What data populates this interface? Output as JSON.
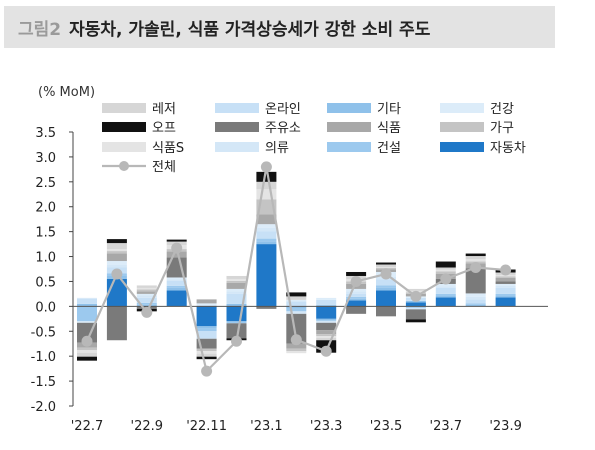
{
  "header": {
    "label": "그림2",
    "title": "자동차, 가솔린, 식품 가격상승세가 강한 소비 주도"
  },
  "colors": {
    "레저": "#d6d6d6",
    "온라인": "#c7e0f6",
    "기타": "#8fc1ea",
    "건강": "#dcecf9",
    "오프": "#111111",
    "주유소": "#7a7a7a",
    "식품": "#a8a8a8",
    "가구": "#c4c4c4",
    "식품S": "#e4e4e4",
    "의류": "#d4e7f7",
    "건설": "#9cc9ee",
    "자동차": "#1f78c8",
    "전체": "#b8b8b8"
  },
  "chart_data": {
    "type": "bar",
    "subtype": "stacked-bar-with-line",
    "unit_label": "(% MoM)",
    "ylim": [
      -2.0,
      3.5
    ],
    "yticks": [
      "3.5",
      "3.0",
      "2.5",
      "2.0",
      "1.5",
      "1.0",
      "0.5",
      "0.0",
      "-0.5",
      "-1.0",
      "-1.5",
      "-2.0"
    ],
    "categories": [
      "'22.7",
      "'22.8",
      "'22.9",
      "'22.10",
      "'22.11",
      "'22.12",
      "'23.1",
      "'23.2",
      "'23.3",
      "'23.4",
      "'23.5",
      "'23.6",
      "'23.7",
      "'23.8",
      "'23.9"
    ],
    "xtick_labels": [
      "'22.7",
      "'22.9",
      "'22.11",
      "'23.1",
      "'23.3",
      "'23.5",
      "'23.7",
      "'23.9"
    ],
    "legend": [
      "레저",
      "온라인",
      "기타",
      "건강",
      "오프",
      "주유소",
      "식품",
      "가구",
      "식품S",
      "의류",
      "건설",
      "자동차",
      "전체"
    ],
    "series": [
      {
        "name": "자동차",
        "values": [
          0.0,
          0.55,
          0.0,
          0.32,
          -0.4,
          -0.3,
          1.25,
          0.0,
          -0.25,
          0.12,
          0.32,
          0.08,
          0.18,
          0.0,
          0.18
        ]
      },
      {
        "name": "기타",
        "values": [
          0.05,
          0.06,
          0.03,
          0.05,
          -0.05,
          0.05,
          0.05,
          -0.05,
          -0.04,
          0.03,
          0.05,
          0.03,
          0.04,
          0.03,
          0.04
        ]
      },
      {
        "name": "건설",
        "values": [
          -0.3,
          0.05,
          0.04,
          0.04,
          -0.05,
          -0.04,
          0.06,
          -0.05,
          0.03,
          0.04,
          0.05,
          -0.03,
          0.03,
          0.03,
          0.03
        ]
      },
      {
        "name": "온라인",
        "values": [
          0.1,
          0.12,
          0.1,
          0.1,
          -0.15,
          0.2,
          0.15,
          0.1,
          0.1,
          0.06,
          0.12,
          0.06,
          0.12,
          0.08,
          0.12
        ]
      },
      {
        "name": "의류",
        "values": [
          0.02,
          0.05,
          0.05,
          0.03,
          0.03,
          0.05,
          0.07,
          -0.05,
          -0.04,
          0.05,
          0.05,
          -0.03,
          0.03,
          0.05,
          0.04
        ]
      },
      {
        "name": "건강",
        "values": [
          -0.03,
          0.08,
          0.03,
          0.04,
          0.03,
          0.05,
          0.07,
          0.03,
          0.04,
          0.05,
          0.1,
          0.03,
          0.05,
          0.07,
          0.04
        ]
      },
      {
        "name": "주유소",
        "values": [
          -0.4,
          -0.68,
          -0.05,
          0.4,
          -0.2,
          -0.3,
          -0.05,
          -0.6,
          -0.15,
          -0.15,
          -0.2,
          -0.2,
          0.1,
          0.5,
          0.05
        ]
      },
      {
        "name": "식품",
        "values": [
          -0.1,
          0.15,
          0.05,
          0.12,
          0.08,
          0.12,
          0.2,
          -0.1,
          -0.08,
          0.1,
          0.05,
          0.05,
          0.1,
          0.1,
          0.07
        ]
      },
      {
        "name": "가구",
        "values": [
          -0.05,
          0.05,
          0.04,
          0.05,
          -0.05,
          0.04,
          0.3,
          -0.05,
          -0.04,
          0.05,
          0.03,
          0.03,
          0.05,
          0.04,
          0.03
        ]
      },
      {
        "name": "식품S",
        "values": [
          -0.05,
          0.04,
          0.03,
          0.08,
          -0.05,
          0.04,
          0.2,
          -0.04,
          -0.03,
          0.05,
          0.02,
          0.03,
          0.04,
          0.05,
          0.03
        ]
      },
      {
        "name": "레저",
        "values": [
          -0.08,
          0.12,
          0.05,
          0.07,
          -0.06,
          0.06,
          0.15,
          0.07,
          -0.05,
          0.06,
          0.05,
          0.04,
          0.04,
          0.06,
          0.05
        ]
      },
      {
        "name": "오프",
        "values": [
          -0.08,
          0.08,
          -0.05,
          0.04,
          -0.05,
          -0.04,
          0.2,
          0.08,
          -0.25,
          0.08,
          0.04,
          -0.06,
          0.12,
          0.05,
          0.06
        ]
      }
    ],
    "line": {
      "name": "전체",
      "values": [
        -0.7,
        0.65,
        -0.12,
        1.17,
        -1.3,
        -0.7,
        2.8,
        -0.67,
        -0.9,
        0.5,
        0.65,
        0.2,
        0.55,
        0.78,
        0.73
      ]
    }
  }
}
